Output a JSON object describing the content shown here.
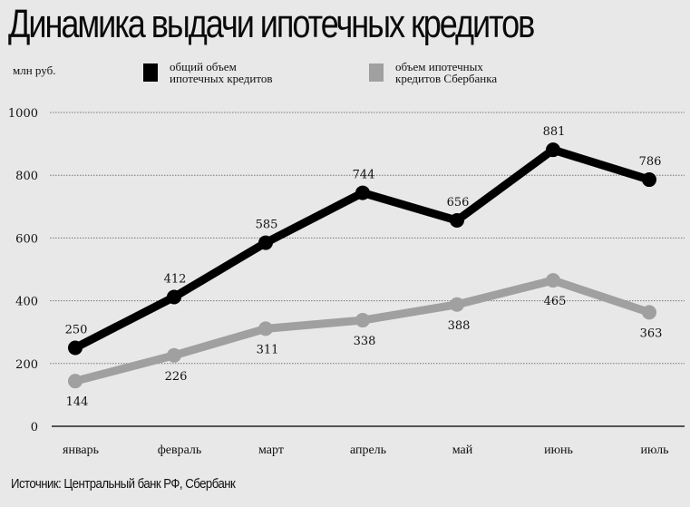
{
  "title": "Динамика выдачи ипотечных кредитов",
  "unit_label": "млн руб.",
  "legend": [
    {
      "label_line1": "общий объем",
      "label_line2": "ипотечных кредитов",
      "color": "#000000"
    },
    {
      "label_line1": "объем ипотечных",
      "label_line2": "кредитов Сбербанка",
      "color": "#a0a0a0"
    }
  ],
  "source": "Источник: Центральный банк РФ, Сбербанк",
  "chart_data": {
    "type": "line",
    "title": "Динамика выдачи ипотечных кредитов",
    "xlabel": "",
    "ylabel": "млн руб.",
    "categories": [
      "январь",
      "февраль",
      "март",
      "апрель",
      "май",
      "июнь",
      "июль"
    ],
    "series": [
      {
        "name": "общий объем ипотечных кредитов",
        "color": "#000000",
        "values": [
          250,
          412,
          585,
          744,
          656,
          881,
          786
        ]
      },
      {
        "name": "объем ипотечных кредитов Сбербанка",
        "color": "#a0a0a0",
        "values": [
          144,
          226,
          311,
          338,
          388,
          465,
          363
        ]
      }
    ],
    "yticks": [
      0,
      200,
      400,
      600,
      800,
      1000
    ],
    "ylim": [
      0,
      1000
    ],
    "grid": true,
    "legend_position": "top"
  }
}
